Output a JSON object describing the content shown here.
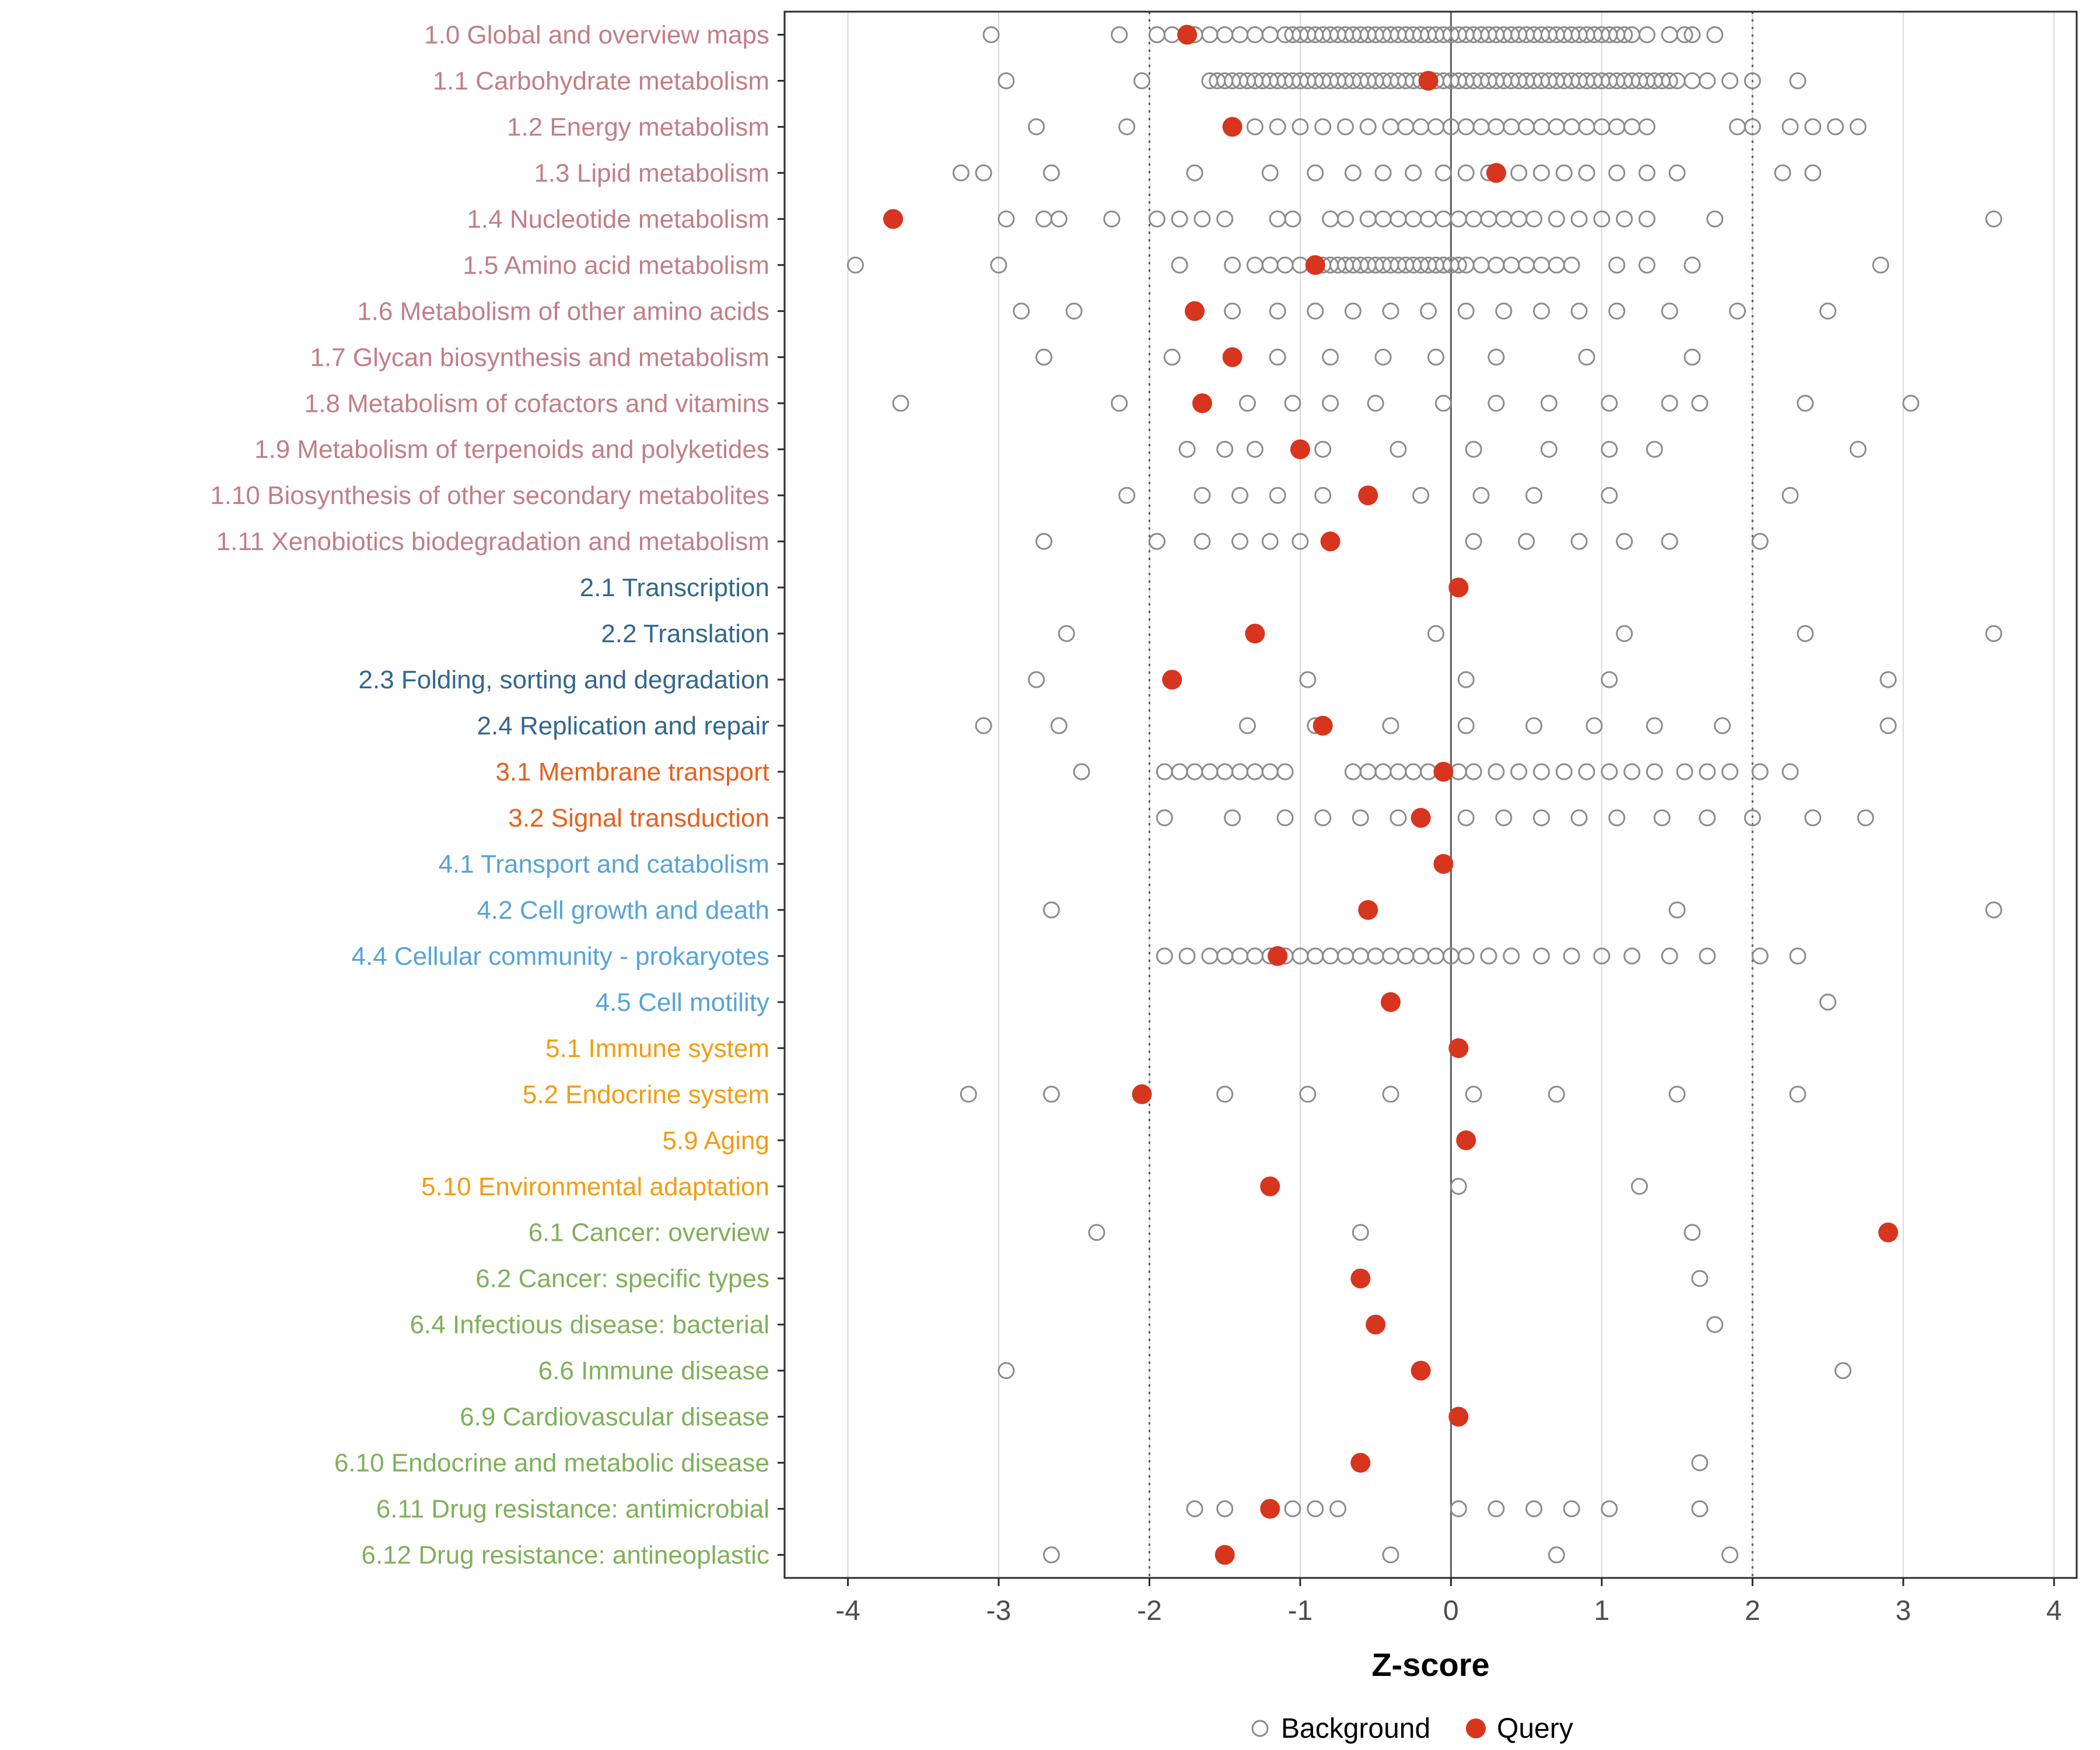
{
  "chart_data": {
    "type": "scatter",
    "title": "",
    "xlabel": "Z-score",
    "ylabel": "",
    "xlim": [
      -4.42,
      4.15
    ],
    "x_ticks": [
      -4,
      -3,
      -2,
      -1,
      0,
      1,
      2,
      3,
      4
    ],
    "grid": "on",
    "legend_position": "bottom",
    "reference_lines": {
      "solid": [
        0
      ],
      "dotted": [
        -2,
        2
      ]
    },
    "legend": [
      {
        "name": "Background",
        "marker": "open-circle"
      },
      {
        "name": "Query",
        "marker": "filled-circle"
      }
    ],
    "colors": {
      "background_point": "#8C8C8C",
      "query_point": "#D7351D",
      "axis_text": "#4D4D4D",
      "axis_title": "#000000",
      "grid": "#D9D9D9",
      "ref_line": "#5F5F5F",
      "panel_border": "#2B2B2B",
      "groups": {
        "1": "#C27E88",
        "2": "#31688E",
        "3": "#E8601C",
        "4": "#56A3D8",
        "5": "#F39C12",
        "6": "#7FB05A"
      }
    },
    "rows": [
      {
        "label": "1.0 Global and overview maps",
        "group": "1",
        "query": -1.75,
        "background": [
          -3.05,
          -2.2,
          -1.95,
          -1.85,
          -1.7,
          -1.6,
          -1.5,
          -1.4,
          -1.3,
          -1.2,
          -1.1,
          -1.05,
          -1,
          -0.95,
          -0.9,
          -0.85,
          -0.8,
          -0.75,
          -0.7,
          -0.65,
          -0.6,
          -0.55,
          -0.5,
          -0.45,
          -0.4,
          -0.35,
          -0.3,
          -0.25,
          -0.2,
          -0.15,
          -0.1,
          -0.05,
          0,
          0.05,
          0.1,
          0.15,
          0.2,
          0.25,
          0.3,
          0.35,
          0.4,
          0.45,
          0.5,
          0.55,
          0.6,
          0.65,
          0.7,
          0.75,
          0.8,
          0.85,
          0.9,
          0.95,
          1,
          1.05,
          1.1,
          1.15,
          1.2,
          1.3,
          1.45,
          1.55,
          1.6,
          1.75
        ]
      },
      {
        "label": "1.1 Carbohydrate metabolism",
        "group": "1",
        "query": -0.15,
        "background": [
          -2.95,
          -2.05,
          -1.6,
          -1.55,
          -1.5,
          -1.45,
          -1.4,
          -1.35,
          -1.3,
          -1.25,
          -1.2,
          -1.15,
          -1.1,
          -1.05,
          -1,
          -0.95,
          -0.9,
          -0.85,
          -0.8,
          -0.75,
          -0.7,
          -0.65,
          -0.6,
          -0.55,
          -0.5,
          -0.45,
          -0.4,
          -0.35,
          -0.3,
          -0.25,
          -0.2,
          -0.1,
          -0.05,
          0,
          0.05,
          0.1,
          0.15,
          0.2,
          0.25,
          0.3,
          0.35,
          0.4,
          0.45,
          0.5,
          0.55,
          0.6,
          0.65,
          0.7,
          0.75,
          0.8,
          0.85,
          0.9,
          0.95,
          1,
          1.05,
          1.1,
          1.15,
          1.2,
          1.25,
          1.3,
          1.35,
          1.4,
          1.45,
          1.5,
          1.6,
          1.7,
          1.85,
          2,
          2.3
        ]
      },
      {
        "label": "1.2 Energy metabolism",
        "group": "1",
        "query": -1.45,
        "background": [
          -2.75,
          -2.15,
          -1.3,
          -1.15,
          -1,
          -0.85,
          -0.7,
          -0.55,
          -0.4,
          -0.3,
          -0.2,
          -0.1,
          0,
          0.1,
          0.2,
          0.3,
          0.4,
          0.5,
          0.6,
          0.7,
          0.8,
          0.9,
          1,
          1.1,
          1.2,
          1.3,
          1.9,
          2,
          2.25,
          2.4,
          2.55,
          2.7
        ]
      },
      {
        "label": "1.3 Lipid metabolism",
        "group": "1",
        "query": 0.3,
        "background": [
          -3.25,
          -3.1,
          -2.65,
          -1.7,
          -1.2,
          -0.9,
          -0.65,
          -0.45,
          -0.25,
          -0.05,
          0.1,
          0.25,
          0.45,
          0.6,
          0.75,
          0.9,
          1.1,
          1.3,
          1.5,
          2.2,
          2.4
        ]
      },
      {
        "label": "1.4 Nucleotide metabolism",
        "group": "1",
        "query": -3.7,
        "background": [
          -2.95,
          -2.7,
          -2.6,
          -2.25,
          -1.95,
          -1.8,
          -1.65,
          -1.5,
          -1.15,
          -1.05,
          -0.8,
          -0.7,
          -0.55,
          -0.45,
          -0.35,
          -0.25,
          -0.15,
          -0.05,
          0.05,
          0.15,
          0.25,
          0.35,
          0.45,
          0.55,
          0.7,
          0.85,
          1,
          1.15,
          1.3,
          1.75,
          3.6
        ]
      },
      {
        "label": "1.5 Amino acid metabolism",
        "group": "1",
        "query": -0.9,
        "background": [
          -3.95,
          -3,
          -1.8,
          -1.45,
          -1.3,
          -1.2,
          -1.1,
          -1,
          -0.9,
          -0.85,
          -0.8,
          -0.75,
          -0.7,
          -0.65,
          -0.6,
          -0.55,
          -0.5,
          -0.45,
          -0.4,
          -0.35,
          -0.3,
          -0.25,
          -0.2,
          -0.15,
          -0.1,
          -0.05,
          0,
          0.05,
          0.1,
          0.2,
          0.3,
          0.4,
          0.5,
          0.6,
          0.7,
          0.8,
          1.1,
          1.3,
          1.6,
          2.85
        ]
      },
      {
        "label": "1.6 Metabolism of other amino acids",
        "group": "1",
        "query": -1.7,
        "background": [
          -2.85,
          -2.5,
          -1.45,
          -1.15,
          -0.9,
          -0.65,
          -0.4,
          -0.15,
          0.1,
          0.35,
          0.6,
          0.85,
          1.1,
          1.45,
          1.9,
          2.5
        ]
      },
      {
        "label": "1.7 Glycan biosynthesis and metabolism",
        "group": "1",
        "query": -1.45,
        "background": [
          -2.7,
          -1.85,
          -1.15,
          -0.8,
          -0.45,
          -0.1,
          0.3,
          0.9,
          1.6
        ]
      },
      {
        "label": "1.8 Metabolism of cofactors and vitamins",
        "group": "1",
        "query": -1.65,
        "background": [
          -3.65,
          -2.2,
          -1.35,
          -1.05,
          -0.8,
          -0.5,
          -0.05,
          0.3,
          0.65,
          1.05,
          1.45,
          1.65,
          2.35,
          3.05
        ]
      },
      {
        "label": "1.9 Metabolism of terpenoids and polyketides",
        "group": "1",
        "query": -1.0,
        "background": [
          -1.75,
          -1.5,
          -1.3,
          -0.85,
          -0.35,
          0.15,
          0.65,
          1.05,
          1.35,
          2.7
        ]
      },
      {
        "label": "1.10 Biosynthesis of other secondary metabolites",
        "group": "1",
        "query": -0.55,
        "background": [
          -2.15,
          -1.65,
          -1.4,
          -1.15,
          -0.85,
          -0.55,
          -0.2,
          0.2,
          0.55,
          1.05,
          2.25
        ]
      },
      {
        "label": "1.11 Xenobiotics biodegradation and metabolism",
        "group": "1",
        "query": -0.8,
        "background": [
          -2.7,
          -1.95,
          -1.65,
          -1.4,
          -1.2,
          -1,
          0.15,
          0.5,
          0.85,
          1.15,
          1.45,
          2.05
        ]
      },
      {
        "label": "2.1 Transcription",
        "group": "2",
        "query": 0.05,
        "background": []
      },
      {
        "label": "2.2 Translation",
        "group": "2",
        "query": -1.3,
        "background": [
          -2.55,
          -0.1,
          1.15,
          2.35,
          3.6
        ]
      },
      {
        "label": "2.3 Folding, sorting and degradation",
        "group": "2",
        "query": -1.85,
        "background": [
          -2.75,
          -0.95,
          0.1,
          1.05,
          2.9
        ]
      },
      {
        "label": "2.4 Replication and repair",
        "group": "2",
        "query": -0.85,
        "background": [
          -3.1,
          -2.6,
          -1.35,
          -0.9,
          -0.4,
          0.1,
          0.55,
          0.95,
          1.35,
          1.8,
          2.9
        ]
      },
      {
        "label": "3.1 Membrane transport",
        "group": "3",
        "query": -0.05,
        "background": [
          -2.45,
          -1.9,
          -1.8,
          -1.7,
          -1.6,
          -1.5,
          -1.4,
          -1.3,
          -1.2,
          -1.1,
          -0.65,
          -0.55,
          -0.45,
          -0.35,
          -0.25,
          -0.15,
          -0.05,
          0.05,
          0.15,
          0.3,
          0.45,
          0.6,
          0.75,
          0.9,
          1.05,
          1.2,
          1.35,
          1.55,
          1.7,
          1.85,
          2.05,
          2.25
        ]
      },
      {
        "label": "3.2 Signal transduction",
        "group": "3",
        "query": -0.2,
        "background": [
          -1.9,
          -1.45,
          -1.1,
          -0.85,
          -0.6,
          -0.35,
          0.1,
          0.35,
          0.6,
          0.85,
          1.1,
          1.4,
          1.7,
          2,
          2.4,
          2.75
        ]
      },
      {
        "label": "4.1 Transport and catabolism",
        "group": "4",
        "query": -0.05,
        "background": []
      },
      {
        "label": "4.2 Cell growth and death",
        "group": "4",
        "query": -0.55,
        "background": [
          -2.65,
          1.5,
          3.6
        ]
      },
      {
        "label": "4.4 Cellular community - prokaryotes",
        "group": "4",
        "query": -1.15,
        "background": [
          -1.9,
          -1.75,
          -1.6,
          -1.5,
          -1.4,
          -1.3,
          -1.2,
          -1.1,
          -1,
          -0.9,
          -0.8,
          -0.7,
          -0.6,
          -0.5,
          -0.4,
          -0.3,
          -0.2,
          -0.1,
          0,
          0.1,
          0.25,
          0.4,
          0.6,
          0.8,
          1,
          1.2,
          1.45,
          1.7,
          2.05,
          2.3
        ]
      },
      {
        "label": "4.5 Cell motility",
        "group": "4",
        "query": -0.4,
        "background": [
          2.5
        ]
      },
      {
        "label": "5.1 Immune system",
        "group": "5",
        "query": 0.05,
        "background": []
      },
      {
        "label": "5.2 Endocrine system",
        "group": "5",
        "query": -2.05,
        "background": [
          -3.2,
          -2.65,
          -1.5,
          -0.95,
          -0.4,
          0.15,
          0.7,
          1.5,
          2.3
        ]
      },
      {
        "label": "5.9 Aging",
        "group": "5",
        "query": 0.1,
        "background": []
      },
      {
        "label": "5.10 Environmental adaptation",
        "group": "5",
        "query": -1.2,
        "background": [
          0.05,
          1.25
        ]
      },
      {
        "label": "6.1 Cancer: overview",
        "group": "6",
        "query": 2.9,
        "background": [
          -2.35,
          -0.6,
          1.6
        ]
      },
      {
        "label": "6.2 Cancer: specific types",
        "group": "6",
        "query": -0.6,
        "background": [
          1.65
        ]
      },
      {
        "label": "6.4 Infectious disease: bacterial",
        "group": "6",
        "query": -0.5,
        "background": [
          1.75
        ]
      },
      {
        "label": "6.6 Immune disease",
        "group": "6",
        "query": -0.2,
        "background": [
          -2.95,
          2.6
        ]
      },
      {
        "label": "6.9 Cardiovascular disease",
        "group": "6",
        "query": 0.05,
        "background": []
      },
      {
        "label": "6.10 Endocrine and metabolic disease",
        "group": "6",
        "query": -0.6,
        "background": [
          1.65
        ]
      },
      {
        "label": "6.11 Drug resistance: antimicrobial",
        "group": "6",
        "query": -1.2,
        "background": [
          -1.7,
          -1.5,
          -1.05,
          -0.9,
          -0.75,
          0.05,
          0.3,
          0.55,
          0.8,
          1.05,
          1.65
        ]
      },
      {
        "label": "6.12 Drug resistance: antineoplastic",
        "group": "6",
        "query": -1.5,
        "background": [
          -2.65,
          -0.4,
          0.7,
          1.85
        ]
      }
    ]
  }
}
